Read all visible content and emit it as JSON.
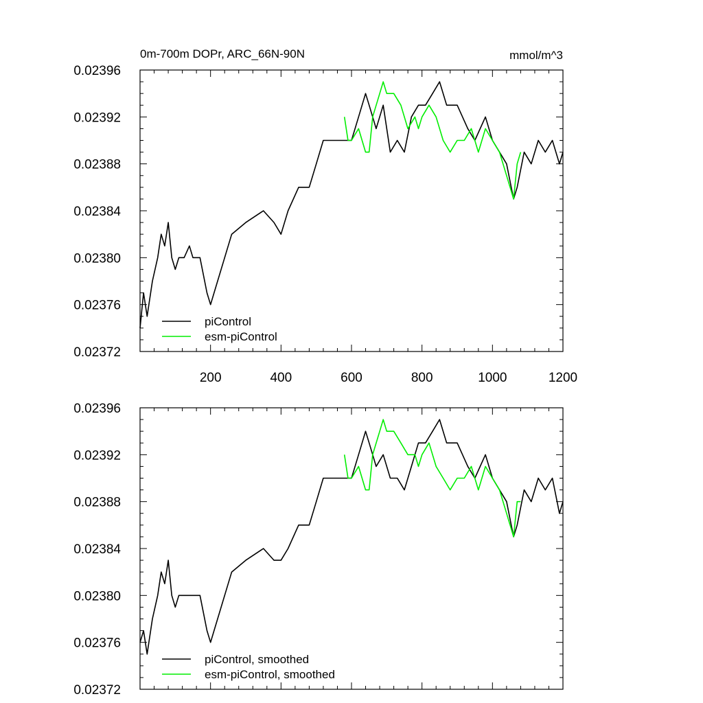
{
  "chart_data": [
    {
      "type": "line",
      "title": "0m-700m DOPr, ARC_66N-90N",
      "units": "mmol/m^3",
      "xlim": [
        0,
        1200
      ],
      "ylim": [
        0.02372,
        0.02396
      ],
      "xticks": [
        200,
        400,
        600,
        800,
        1000,
        1200
      ],
      "xtick_labels": [
        "200",
        "400",
        "600",
        "800",
        "1000",
        "1200"
      ],
      "yticks": [
        0.02372,
        0.02376,
        0.0238,
        0.02384,
        0.02388,
        0.02392,
        0.02396
      ],
      "ytick_labels": [
        "0.02372",
        "0.02376",
        "0.02380",
        "0.02384",
        "0.02388",
        "0.02392",
        "0.02396"
      ],
      "legend": {
        "position": "bottom-left"
      },
      "series": [
        {
          "name": "piControl",
          "color": "#000000",
          "x": [
            0,
            10,
            20,
            35,
            50,
            60,
            70,
            80,
            90,
            100,
            110,
            125,
            140,
            150,
            170,
            190,
            200,
            210,
            230,
            260,
            300,
            350,
            380,
            400,
            420,
            450,
            480,
            500,
            520,
            550,
            580,
            600,
            620,
            640,
            650,
            670,
            690,
            710,
            730,
            750,
            770,
            790,
            810,
            830,
            850,
            870,
            900,
            930,
            950,
            980,
            1000,
            1020,
            1040,
            1060,
            1070,
            1090,
            1110,
            1130,
            1150,
            1170,
            1190,
            1200
          ],
          "y": [
            0.02374,
            0.02377,
            0.02375,
            0.02378,
            0.0238,
            0.02382,
            0.02381,
            0.02383,
            0.0238,
            0.02379,
            0.0238,
            0.0238,
            0.02381,
            0.0238,
            0.0238,
            0.02377,
            0.02376,
            0.02377,
            0.02379,
            0.02382,
            0.02383,
            0.02384,
            0.02383,
            0.02382,
            0.02384,
            0.02386,
            0.02386,
            0.02388,
            0.0239,
            0.0239,
            0.0239,
            0.0239,
            0.02392,
            0.02394,
            0.02393,
            0.02391,
            0.02393,
            0.02389,
            0.0239,
            0.02389,
            0.02392,
            0.02393,
            0.02393,
            0.02394,
            0.02395,
            0.02393,
            0.02393,
            0.02391,
            0.0239,
            0.02392,
            0.0239,
            0.02389,
            0.02388,
            0.02385,
            0.02386,
            0.02389,
            0.02388,
            0.0239,
            0.02389,
            0.0239,
            0.02388,
            0.02389
          ]
        },
        {
          "name": "esm-piControl",
          "color": "#00ee00",
          "x": [
            580,
            590,
            600,
            620,
            640,
            650,
            660,
            680,
            690,
            700,
            720,
            740,
            760,
            780,
            790,
            800,
            820,
            840,
            860,
            880,
            900,
            920,
            940,
            960,
            980,
            1000,
            1020,
            1040,
            1050,
            1060,
            1070,
            1080
          ],
          "y": [
            0.02392,
            0.0239,
            0.0239,
            0.02391,
            0.02389,
            0.02389,
            0.02392,
            0.02394,
            0.02395,
            0.02394,
            0.02394,
            0.02393,
            0.02391,
            0.02392,
            0.02391,
            0.02392,
            0.02393,
            0.02392,
            0.0239,
            0.02389,
            0.0239,
            0.0239,
            0.02391,
            0.02389,
            0.02391,
            0.0239,
            0.02389,
            0.02387,
            0.02386,
            0.02385,
            0.02388,
            0.02389
          ]
        }
      ]
    },
    {
      "type": "line",
      "title": "",
      "xlim": [
        0,
        1200
      ],
      "ylim": [
        0.02372,
        0.02396
      ],
      "xticks": [
        200,
        400,
        600,
        800,
        1000,
        1200
      ],
      "yticks": [
        0.02372,
        0.02376,
        0.0238,
        0.02384,
        0.02388,
        0.02392,
        0.02396
      ],
      "ytick_labels": [
        "0.02372",
        "0.02376",
        "0.02380",
        "0.02384",
        "0.02388",
        "0.02392",
        "0.02396"
      ],
      "legend": {
        "position": "bottom-left"
      },
      "series": [
        {
          "name": "piControl, smoothed",
          "color": "#000000",
          "x": [
            0,
            10,
            20,
            35,
            50,
            60,
            70,
            80,
            90,
            100,
            110,
            125,
            140,
            150,
            170,
            190,
            200,
            210,
            230,
            260,
            300,
            350,
            380,
            400,
            420,
            450,
            480,
            500,
            520,
            550,
            580,
            600,
            620,
            640,
            650,
            670,
            690,
            710,
            730,
            750,
            770,
            790,
            810,
            830,
            850,
            870,
            900,
            930,
            950,
            980,
            1000,
            1020,
            1040,
            1060,
            1070,
            1090,
            1110,
            1130,
            1150,
            1170,
            1190,
            1200
          ],
          "y": [
            0.02376,
            0.02377,
            0.02375,
            0.02378,
            0.0238,
            0.02382,
            0.02381,
            0.02383,
            0.0238,
            0.02379,
            0.0238,
            0.0238,
            0.0238,
            0.0238,
            0.0238,
            0.02377,
            0.02376,
            0.02377,
            0.02379,
            0.02382,
            0.02383,
            0.02384,
            0.02383,
            0.02383,
            0.02384,
            0.02386,
            0.02386,
            0.02388,
            0.0239,
            0.0239,
            0.0239,
            0.0239,
            0.02392,
            0.02394,
            0.02393,
            0.02391,
            0.02392,
            0.0239,
            0.0239,
            0.02389,
            0.02391,
            0.02393,
            0.02393,
            0.02394,
            0.02395,
            0.02393,
            0.02393,
            0.02391,
            0.0239,
            0.02392,
            0.0239,
            0.02389,
            0.02388,
            0.02385,
            0.02386,
            0.02389,
            0.02388,
            0.0239,
            0.02389,
            0.0239,
            0.02387,
            0.02388
          ]
        },
        {
          "name": "esm-piControl, smoothed",
          "color": "#00ee00",
          "x": [
            580,
            590,
            600,
            620,
            640,
            650,
            660,
            680,
            690,
            700,
            720,
            740,
            760,
            780,
            790,
            800,
            820,
            840,
            860,
            880,
            900,
            920,
            940,
            960,
            980,
            1000,
            1020,
            1040,
            1050,
            1060,
            1070,
            1080
          ],
          "y": [
            0.02392,
            0.0239,
            0.0239,
            0.02391,
            0.02389,
            0.02389,
            0.02392,
            0.02394,
            0.02395,
            0.02394,
            0.02394,
            0.02393,
            0.02392,
            0.02392,
            0.02391,
            0.02392,
            0.02393,
            0.02391,
            0.0239,
            0.02389,
            0.0239,
            0.0239,
            0.02391,
            0.02389,
            0.02391,
            0.0239,
            0.02389,
            0.02387,
            0.02386,
            0.02385,
            0.02388,
            0.02388
          ]
        }
      ]
    }
  ]
}
